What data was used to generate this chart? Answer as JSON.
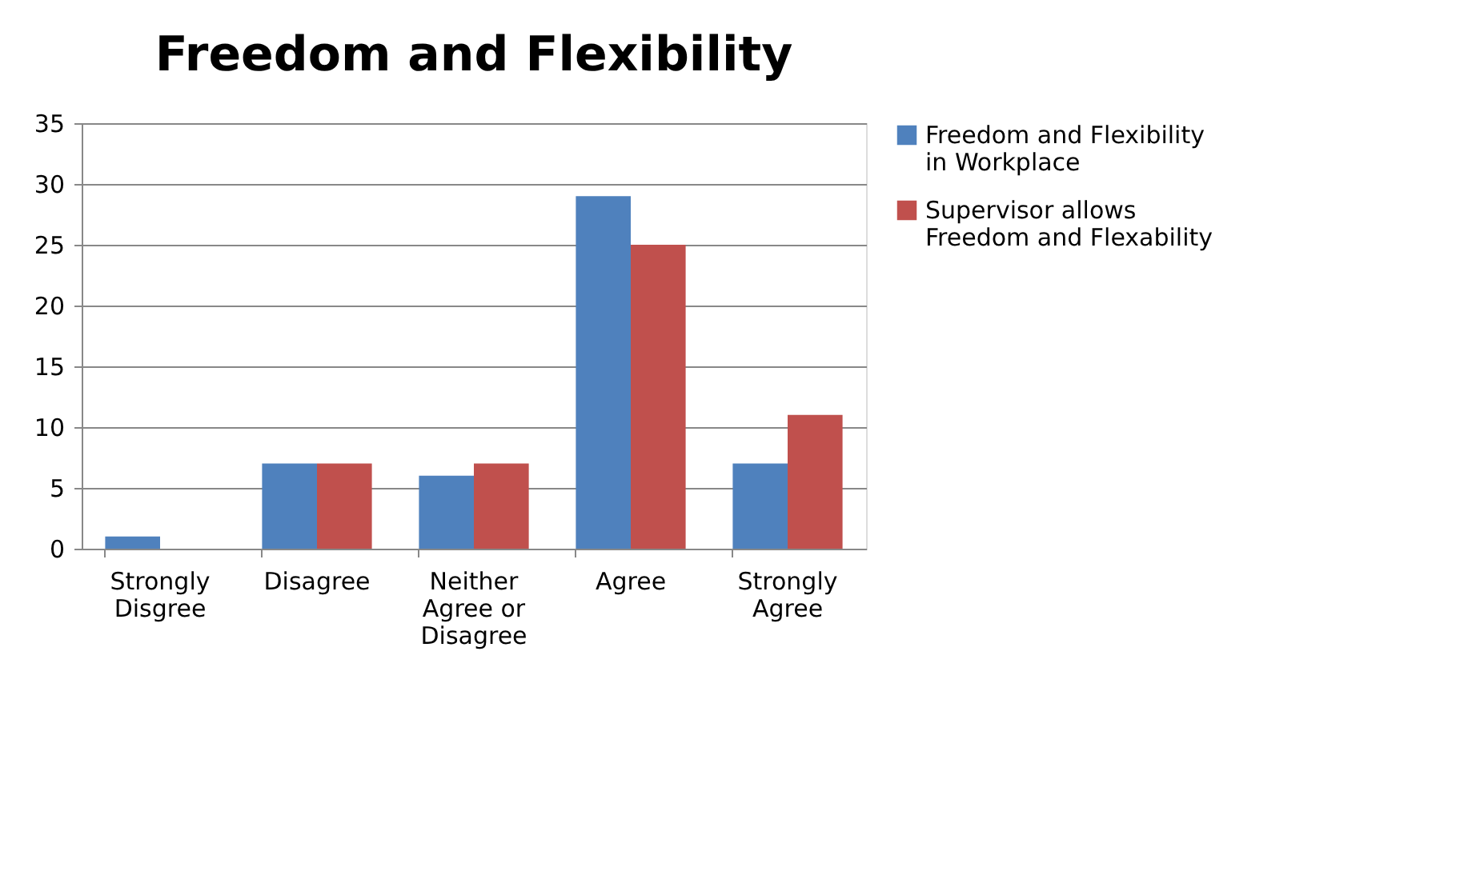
{
  "chart_data": {
    "type": "bar",
    "title": "Freedom and Flexibility",
    "categories": [
      "Strongly Disgree",
      "Disagree",
      "Neither Agree or Disagree",
      "Agree",
      "Strongly Agree"
    ],
    "series": [
      {
        "name": "Freedom and Flexibility in Workplace",
        "color": "#4f81bd",
        "values": [
          1,
          7,
          6,
          29,
          7
        ]
      },
      {
        "name": "Supervisor allows Freedom and Flexability",
        "color": "#c0504d",
        "values": [
          0,
          7,
          7,
          25,
          11
        ]
      }
    ],
    "ylim": [
      0,
      35
    ],
    "yticks": [
      0,
      5,
      10,
      15,
      20,
      25,
      30,
      35
    ],
    "grid": "y",
    "legend": "right"
  }
}
